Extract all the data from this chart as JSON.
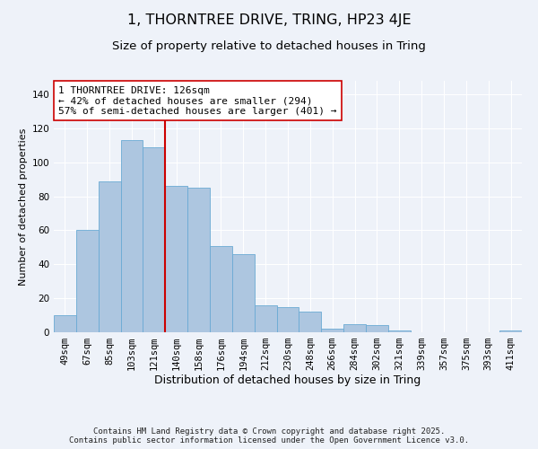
{
  "title": "1, THORNTREE DRIVE, TRING, HP23 4JE",
  "subtitle": "Size of property relative to detached houses in Tring",
  "xlabel": "Distribution of detached houses by size in Tring",
  "ylabel": "Number of detached properties",
  "categories": [
    "49sqm",
    "67sqm",
    "85sqm",
    "103sqm",
    "121sqm",
    "140sqm",
    "158sqm",
    "176sqm",
    "194sqm",
    "212sqm",
    "230sqm",
    "248sqm",
    "266sqm",
    "284sqm",
    "302sqm",
    "321sqm",
    "339sqm",
    "357sqm",
    "375sqm",
    "393sqm",
    "411sqm"
  ],
  "values": [
    10,
    60,
    89,
    113,
    109,
    86,
    85,
    51,
    46,
    16,
    15,
    12,
    2,
    5,
    4,
    1,
    0,
    0,
    0,
    0,
    1
  ],
  "bar_color": "#adc6e0",
  "bar_edge_color": "#6aaad4",
  "vline_color": "#cc0000",
  "annotation_text": "1 THORNTREE DRIVE: 126sqm\n← 42% of detached houses are smaller (294)\n57% of semi-detached houses are larger (401) →",
  "annotation_box_facecolor": "#ffffff",
  "annotation_box_edgecolor": "#cc0000",
  "ylim": [
    0,
    148
  ],
  "yticks": [
    0,
    20,
    40,
    60,
    80,
    100,
    120,
    140
  ],
  "background_color": "#eef2f9",
  "grid_color": "#ffffff",
  "footer_text": "Contains HM Land Registry data © Crown copyright and database right 2025.\nContains public sector information licensed under the Open Government Licence v3.0.",
  "title_fontsize": 11.5,
  "subtitle_fontsize": 9.5,
  "xlabel_fontsize": 9,
  "ylabel_fontsize": 8,
  "tick_fontsize": 7.5,
  "annotation_fontsize": 8,
  "footer_fontsize": 6.5,
  "vline_index": 4.5
}
